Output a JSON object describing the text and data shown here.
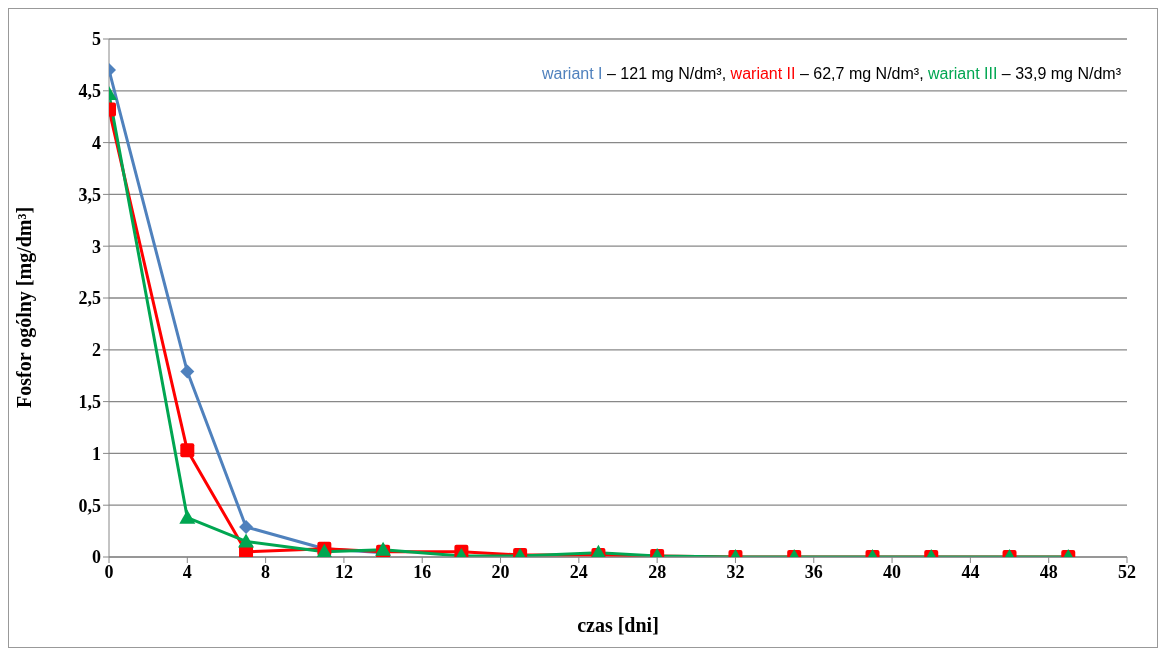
{
  "chart_data": {
    "type": "line",
    "xlabel": "czas [dni]",
    "ylabel": "Fosfor ogólny [mg/dm³]",
    "x": [
      0,
      4,
      7,
      11,
      14,
      18,
      21,
      25,
      28,
      32,
      35,
      39,
      42,
      46,
      49
    ],
    "series": [
      {
        "name": "wariant I",
        "color": "#4f81bd",
        "marker": "diamond",
        "values": [
          4.7,
          1.79,
          0.29,
          0.08,
          0.04,
          null,
          null,
          null,
          null,
          null,
          null,
          null,
          null,
          null,
          null
        ]
      },
      {
        "name": "wariant II",
        "color": "#ff0000",
        "marker": "square",
        "values": [
          4.32,
          1.03,
          0.05,
          0.08,
          0.05,
          0.05,
          0.02,
          0.02,
          0.01,
          0,
          0,
          0,
          0,
          0,
          0
        ]
      },
      {
        "name": "wariant III",
        "color": "#00a651",
        "marker": "triangle",
        "values": [
          4.47,
          0.38,
          0.15,
          0.05,
          0.07,
          0.01,
          0.01,
          0.04,
          0.01,
          0,
          0,
          0,
          0,
          0,
          0
        ]
      }
    ],
    "annotations": [
      "– 121 mg N/dm³,",
      "– 62,7 mg N/dm³,",
      "– 33,9 mg N/dm³"
    ],
    "xlim": [
      0,
      52
    ],
    "xticks": [
      0,
      4,
      8,
      12,
      16,
      20,
      24,
      28,
      32,
      36,
      40,
      44,
      48,
      52
    ],
    "ylim": [
      0,
      5
    ],
    "yticks": [
      0,
      {
        "value": 0.5,
        "label": "0,5"
      },
      1,
      {
        "value": 1.5,
        "label": "1,5"
      },
      2,
      {
        "value": 2.5,
        "label": "2,5"
      },
      3,
      {
        "value": 3.5,
        "label": "3,5"
      },
      4,
      {
        "value": 4.5,
        "label": "4,5"
      },
      5
    ],
    "grid": "y",
    "legend": "top right",
    "line_style": "solid"
  }
}
